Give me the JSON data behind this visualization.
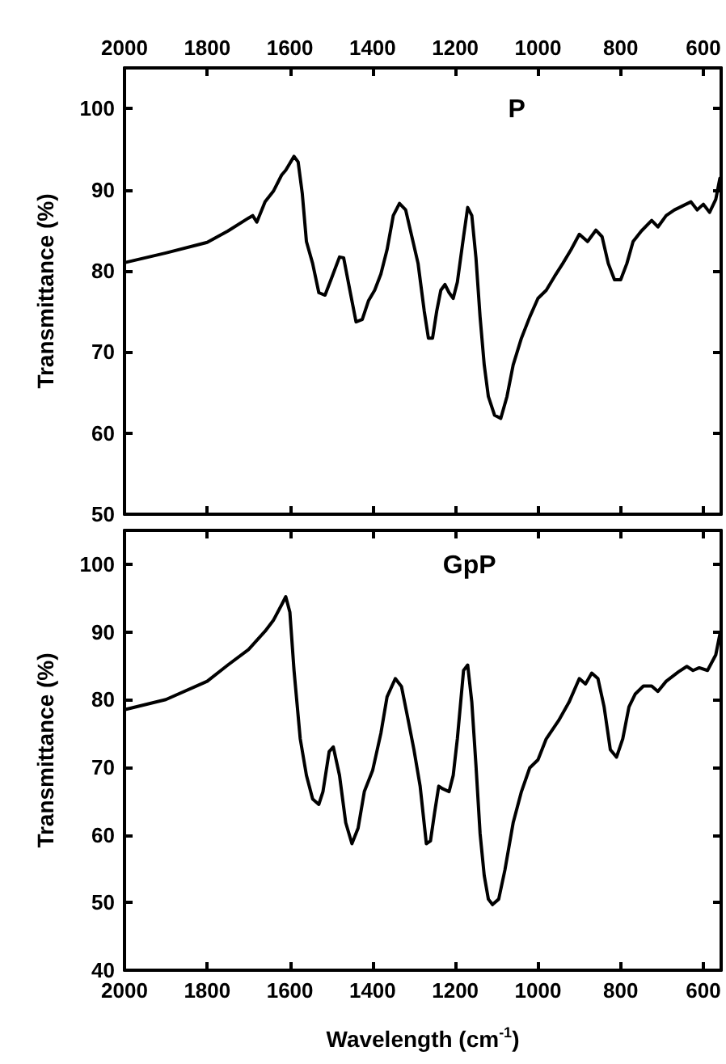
{
  "chart_data": [
    {
      "type": "line",
      "ylabel": "Transmittance (%)",
      "annotations": [
        "P"
      ],
      "xlim": [
        2000,
        557
      ],
      "tick_labels": "y",
      "x2lim": [
        2000,
        557
      ],
      "x2ticks": [
        2000,
        1800,
        1600,
        1400,
        1200,
        1000,
        800,
        600
      ],
      "ylim": [
        50,
        105
      ],
      "yticks": [
        50,
        60,
        70,
        80,
        90,
        100
      ],
      "marker": "none",
      "line_style": "solid",
      "series": [
        {
          "color": "#000000",
          "x": [
            2000,
            1900,
            1800,
            1750,
            1700,
            1690,
            1680,
            1660,
            1640,
            1620,
            1610,
            1590,
            1580,
            1570,
            1560,
            1545,
            1530,
            1515,
            1500,
            1480,
            1470,
            1455,
            1440,
            1425,
            1410,
            1395,
            1380,
            1365,
            1350,
            1335,
            1320,
            1305,
            1290,
            1275,
            1265,
            1255,
            1245,
            1235,
            1225,
            1215,
            1205,
            1195,
            1180,
            1170,
            1160,
            1150,
            1140,
            1130,
            1120,
            1105,
            1090,
            1075,
            1060,
            1040,
            1020,
            1000,
            980,
            960,
            940,
            920,
            900,
            880,
            860,
            845,
            830,
            815,
            800,
            785,
            770,
            750,
            725,
            710,
            690,
            670,
            650,
            630,
            615,
            600,
            585,
            570,
            560
          ],
          "values": [
            81.0,
            82.2,
            83.5,
            84.9,
            86.5,
            86.8,
            86.0,
            88.5,
            89.8,
            91.8,
            92.4,
            94.1,
            93.4,
            89.5,
            83.6,
            80.9,
            77.3,
            77.0,
            79.0,
            81.7,
            81.6,
            77.6,
            73.7,
            74.0,
            76.3,
            77.6,
            79.6,
            82.6,
            86.8,
            88.3,
            87.5,
            84.2,
            80.9,
            75.0,
            71.7,
            71.7,
            75.0,
            77.6,
            78.3,
            77.3,
            76.6,
            78.6,
            84.2,
            87.8,
            86.8,
            81.6,
            74.3,
            68.4,
            64.5,
            62.2,
            61.8,
            64.5,
            68.4,
            71.7,
            74.3,
            76.6,
            77.6,
            79.3,
            80.9,
            82.6,
            84.5,
            83.6,
            85.0,
            84.2,
            80.9,
            78.9,
            78.9,
            80.9,
            83.6,
            84.9,
            86.2,
            85.4,
            86.8,
            87.5,
            88.0,
            88.5,
            87.5,
            88.2,
            87.2,
            88.8,
            91.4
          ]
        }
      ]
    },
    {
      "type": "line",
      "xlabel": "Wavelength (cm$^{-1}$)",
      "ylabel": "Transmittance (%)",
      "annotations": [
        "GpP"
      ],
      "xlim": [
        2000,
        557
      ],
      "xticks": [
        2000,
        1800,
        1600,
        1400,
        1200,
        1000,
        800,
        600
      ],
      "ylim": [
        40,
        105
      ],
      "yticks": [
        40,
        50,
        60,
        70,
        80,
        90,
        100
      ],
      "marker": "none",
      "line_style": "solid",
      "series": [
        {
          "color": "#000000",
          "x": [
            2000,
            1900,
            1800,
            1750,
            1700,
            1660,
            1640,
            1620,
            1610,
            1600,
            1590,
            1575,
            1560,
            1545,
            1530,
            1520,
            1505,
            1495,
            1480,
            1465,
            1450,
            1435,
            1420,
            1400,
            1380,
            1365,
            1345,
            1330,
            1315,
            1300,
            1285,
            1270,
            1260,
            1250,
            1240,
            1230,
            1215,
            1205,
            1195,
            1180,
            1170,
            1160,
            1150,
            1140,
            1130,
            1120,
            1110,
            1095,
            1080,
            1060,
            1040,
            1020,
            1000,
            980,
            950,
            925,
            900,
            885,
            870,
            855,
            840,
            825,
            810,
            795,
            780,
            765,
            745,
            725,
            710,
            690,
            660,
            640,
            625,
            610,
            590,
            570,
            560
          ],
          "values": [
            78.5,
            80.0,
            82.7,
            85.1,
            87.4,
            90.1,
            91.7,
            94.0,
            95.2,
            92.9,
            84.3,
            74.2,
            68.8,
            65.3,
            64.5,
            66.4,
            72.3,
            73.0,
            68.8,
            61.8,
            58.7,
            61.0,
            66.4,
            69.5,
            75.0,
            80.4,
            83.1,
            81.9,
            77.3,
            72.6,
            67.2,
            58.7,
            59.1,
            63.3,
            67.2,
            66.8,
            66.4,
            68.8,
            74.2,
            84.3,
            85.1,
            79.6,
            70.3,
            60.2,
            54.0,
            50.5,
            49.7,
            50.5,
            54.8,
            61.8,
            66.4,
            69.9,
            71.1,
            74.2,
            76.9,
            79.6,
            83.1,
            82.3,
            83.9,
            83.1,
            78.9,
            72.6,
            71.5,
            74.2,
            78.9,
            80.8,
            82.0,
            82.0,
            81.2,
            82.7,
            84.1,
            84.9,
            84.3,
            84.7,
            84.3,
            86.6,
            89.7
          ]
        }
      ]
    }
  ]
}
